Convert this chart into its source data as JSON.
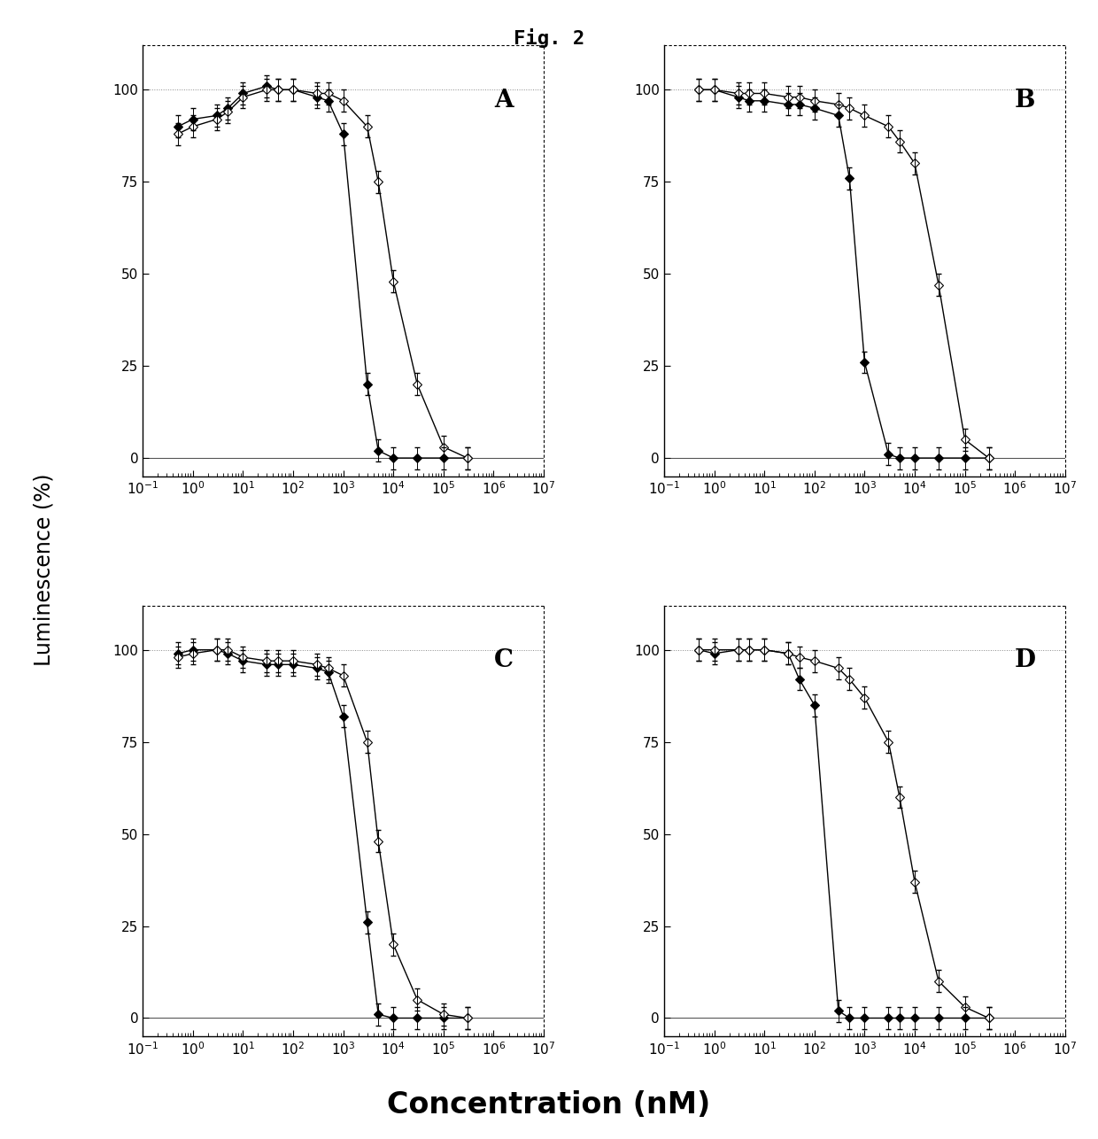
{
  "title": "Fig. 2",
  "xlabel": "Concentration (nM)",
  "ylabel": "Luminescence (%)",
  "panels": [
    "A",
    "B",
    "C",
    "D"
  ],
  "xmin": 0.1,
  "xmax": 10000000.0,
  "ymin": -5,
  "ymax": 112,
  "yticks": [
    0,
    25,
    50,
    75,
    100
  ],
  "panel_A": {
    "filled": {
      "x": [
        0.5,
        1,
        3,
        5,
        10,
        30,
        50,
        100,
        300,
        500,
        1000,
        3000,
        5000,
        10000,
        30000,
        100000,
        300000
      ],
      "y": [
        90,
        92,
        93,
        95,
        99,
        101,
        100,
        100,
        98,
        97,
        88,
        20,
        2,
        0,
        0,
        0,
        0
      ]
    },
    "open": {
      "x": [
        0.5,
        1,
        3,
        5,
        10,
        30,
        50,
        100,
        300,
        500,
        1000,
        3000,
        5000,
        10000,
        30000,
        100000,
        300000
      ],
      "y": [
        88,
        90,
        92,
        94,
        98,
        100,
        100,
        100,
        99,
        99,
        97,
        90,
        75,
        48,
        20,
        3,
        0
      ]
    }
  },
  "panel_B": {
    "filled": {
      "x": [
        0.5,
        1,
        3,
        5,
        10,
        30,
        50,
        100,
        300,
        500,
        1000,
        3000,
        5000,
        10000,
        30000,
        100000,
        300000
      ],
      "y": [
        100,
        100,
        98,
        97,
        97,
        96,
        96,
        95,
        93,
        76,
        26,
        1,
        0,
        0,
        0,
        0,
        0
      ]
    },
    "open": {
      "x": [
        0.5,
        1,
        3,
        5,
        10,
        30,
        50,
        100,
        300,
        500,
        1000,
        3000,
        5000,
        10000,
        30000,
        100000,
        300000
      ],
      "y": [
        100,
        100,
        99,
        99,
        99,
        98,
        98,
        97,
        96,
        95,
        93,
        90,
        86,
        80,
        47,
        5,
        0
      ]
    }
  },
  "panel_C": {
    "filled": {
      "x": [
        0.5,
        1,
        3,
        5,
        10,
        30,
        50,
        100,
        300,
        500,
        1000,
        3000,
        5000,
        10000,
        30000,
        100000,
        300000
      ],
      "y": [
        99,
        100,
        100,
        99,
        97,
        96,
        96,
        96,
        95,
        94,
        82,
        26,
        1,
        0,
        0,
        0,
        0
      ]
    },
    "open": {
      "x": [
        0.5,
        1,
        3,
        5,
        10,
        30,
        50,
        100,
        300,
        500,
        1000,
        3000,
        5000,
        10000,
        30000,
        100000,
        300000
      ],
      "y": [
        98,
        99,
        100,
        100,
        98,
        97,
        97,
        97,
        96,
        95,
        93,
        75,
        48,
        20,
        5,
        1,
        0
      ]
    }
  },
  "panel_D": {
    "filled": {
      "x": [
        0.5,
        1,
        3,
        5,
        10,
        30,
        50,
        100,
        300,
        500,
        1000,
        3000,
        5000,
        10000,
        30000,
        100000,
        300000
      ],
      "y": [
        100,
        99,
        100,
        100,
        100,
        99,
        92,
        85,
        2,
        0,
        0,
        0,
        0,
        0,
        0,
        0,
        0
      ]
    },
    "open": {
      "x": [
        0.5,
        1,
        3,
        5,
        10,
        30,
        50,
        100,
        300,
        500,
        1000,
        3000,
        5000,
        10000,
        30000,
        100000,
        300000
      ],
      "y": [
        100,
        100,
        100,
        100,
        100,
        99,
        98,
        97,
        95,
        92,
        87,
        75,
        60,
        37,
        10,
        3,
        0
      ]
    }
  },
  "background_color": "#ffffff",
  "spine_color": "#000000",
  "filled_marker": "D",
  "open_marker": "D",
  "filled_color": "#000000",
  "open_color": "#000000",
  "line_color": "#000000",
  "markersize": 5,
  "linewidth": 1.0
}
